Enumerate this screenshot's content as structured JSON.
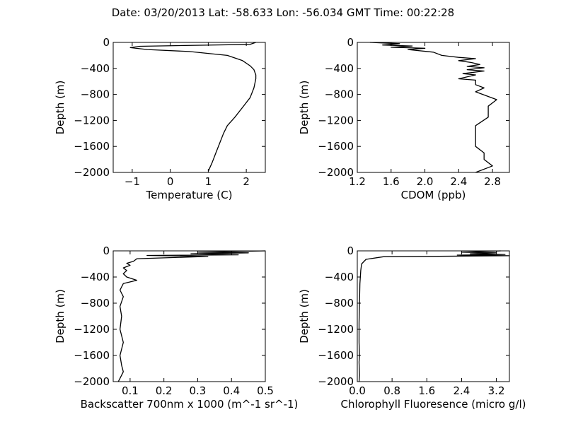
{
  "figure_title": "Date: 03/20/2013  Lat:  -58.633 Lon:  -56.034  GMT Time: 00:22:28",
  "chart_data": [
    {
      "type": "line",
      "xlabel": "Temperature (C)",
      "ylabel": "Depth (m)",
      "xlim": [
        -1.5,
        2.5
      ],
      "ylim": [
        -2000,
        0
      ],
      "xticks": [
        -1,
        0,
        1,
        2
      ],
      "xtick_labels": [
        "−1",
        "0",
        "1",
        "2"
      ],
      "yticks": [
        0,
        -400,
        -800,
        -1200,
        -1600,
        -2000
      ],
      "ytick_labels": [
        "0",
        "−400",
        "−800",
        "−1200",
        "−1600",
        "−2000"
      ],
      "grid": false,
      "series": [
        {
          "x": [
            2.25,
            2.1,
            -0.8,
            -1.05,
            -0.6,
            0.5,
            1.5,
            1.9,
            2.1,
            2.2,
            2.25,
            2.25,
            2.2,
            2.1,
            1.9,
            1.7,
            1.5,
            1.4,
            1.3,
            1.2,
            1.1,
            1.0
          ],
          "y": [
            0,
            -30,
            -60,
            -80,
            -110,
            -140,
            -200,
            -280,
            -360,
            -420,
            -500,
            -560,
            -700,
            -850,
            -1000,
            -1150,
            -1280,
            -1400,
            -1550,
            -1700,
            -1850,
            -1980
          ]
        }
      ]
    },
    {
      "type": "line",
      "xlabel": "CDOM (ppb)",
      "ylabel": "Depth (m)",
      "xlim": [
        1.2,
        3.0
      ],
      "ylim": [
        -2000,
        0
      ],
      "xticks": [
        1.2,
        1.6,
        2.0,
        2.4,
        2.8
      ],
      "xtick_labels": [
        "1.2",
        "1.6",
        "2.0",
        "2.4",
        "2.8"
      ],
      "yticks": [
        0,
        -400,
        -800,
        -1200,
        -1600,
        -2000
      ],
      "ytick_labels": [
        "0",
        "−400",
        "−800",
        "−1200",
        "−1600",
        "−2000"
      ],
      "grid": false,
      "series": [
        {
          "x": [
            1.35,
            1.7,
            1.5,
            1.85,
            1.6,
            2.0,
            1.8,
            2.1,
            2.2,
            2.4,
            2.6,
            2.4,
            2.55,
            2.65,
            2.5,
            2.7,
            2.5,
            2.7,
            2.45,
            2.6,
            2.4,
            2.6,
            2.6,
            2.7,
            2.6,
            2.85,
            2.75,
            2.75,
            2.6,
            2.6,
            2.6,
            2.7,
            2.7,
            2.8,
            2.6
          ],
          "y": [
            0,
            -20,
            -40,
            -55,
            -75,
            -90,
            -110,
            -150,
            -200,
            -230,
            -250,
            -280,
            -310,
            -340,
            -370,
            -390,
            -420,
            -440,
            -480,
            -500,
            -560,
            -580,
            -650,
            -700,
            -760,
            -880,
            -980,
            -1150,
            -1280,
            -1400,
            -1600,
            -1700,
            -1800,
            -1900,
            -2000
          ]
        }
      ]
    },
    {
      "type": "line",
      "xlabel": "Backscatter 700nm x 1000 (m^-1 sr^-1)",
      "ylabel": "Depth (m)",
      "xlim": [
        0.05,
        0.5
      ],
      "ylim": [
        -2000,
        0
      ],
      "xticks": [
        0.1,
        0.2,
        0.3,
        0.4,
        0.5
      ],
      "xtick_labels": [
        "0.1",
        "0.2",
        "0.3",
        "0.4",
        "0.5"
      ],
      "yticks": [
        0,
        -400,
        -800,
        -1200,
        -1600,
        -2000
      ],
      "ytick_labels": [
        "0",
        "−400",
        "−800",
        "−1200",
        "−1600",
        "−2000"
      ],
      "grid": false,
      "series": [
        {
          "x": [
            0.5,
            0.3,
            0.45,
            0.28,
            0.42,
            0.15,
            0.33,
            0.12,
            0.11,
            0.09,
            0.1,
            0.08,
            0.09,
            0.08,
            0.09,
            0.12,
            0.08,
            0.07,
            0.08,
            0.07,
            0.075,
            0.07,
            0.08,
            0.07,
            0.075,
            0.08,
            0.07,
            0.065
          ],
          "y": [
            0,
            -20,
            -30,
            -45,
            -60,
            -70,
            -85,
            -120,
            -160,
            -190,
            -220,
            -260,
            -300,
            -350,
            -400,
            -450,
            -500,
            -600,
            -700,
            -850,
            -1000,
            -1200,
            -1400,
            -1600,
            -1750,
            -1850,
            -1950,
            -2000
          ]
        }
      ]
    },
    {
      "type": "line",
      "xlabel": "Chlorophyll Fluoresence (micro g/l)",
      "ylabel": "Depth (m)",
      "xlim": [
        0.0,
        3.5
      ],
      "ylim": [
        -2000,
        0
      ],
      "xticks": [
        0.0,
        0.8,
        1.6,
        2.4,
        3.2
      ],
      "xtick_labels": [
        "0.0",
        "0.8",
        "1.6",
        "2.4",
        "3.2"
      ],
      "yticks": [
        0,
        -400,
        -800,
        -1200,
        -1600,
        -2000
      ],
      "ytick_labels": [
        "0",
        "−400",
        "−800",
        "−1200",
        "−1600",
        "−2000"
      ],
      "grid": false,
      "series": [
        {
          "x": [
            3.3,
            2.4,
            3.2,
            2.6,
            3.4,
            2.3,
            3.5,
            0.6,
            0.2,
            0.1,
            0.08,
            0.06,
            0.05,
            0.04,
            0.04,
            0.05,
            0.04,
            0.05,
            0.04
          ],
          "y": [
            0,
            -20,
            -30,
            -45,
            -55,
            -65,
            -75,
            -90,
            -130,
            -200,
            -300,
            -500,
            -800,
            -1100,
            -1400,
            -1600,
            -1700,
            -1900,
            -2000
          ]
        }
      ]
    }
  ]
}
